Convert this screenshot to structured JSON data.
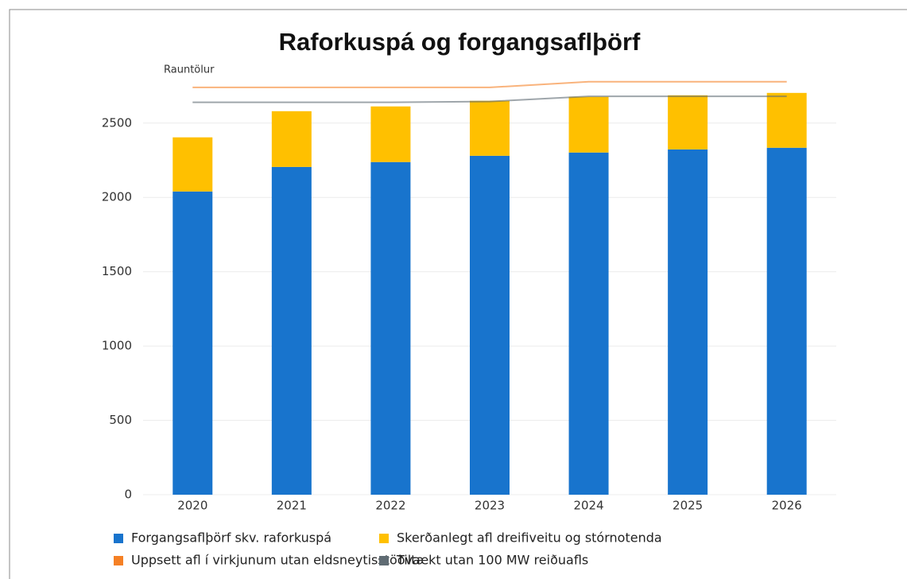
{
  "chart_data": {
    "type": "bar",
    "stacked": true,
    "title": "Raforkuspá og forgangsaflþörf",
    "annotation": "Rauntölur",
    "categories": [
      "2020",
      "2021",
      "2022",
      "2023",
      "2024",
      "2025",
      "2026"
    ],
    "series": [
      {
        "name": "Forgangsaflþörf skv. raforkuspá",
        "color": "#1874cd",
        "type": "bar",
        "values": [
          2040,
          2205,
          2238,
          2280,
          2302,
          2323,
          2334
        ]
      },
      {
        "name": "Skerðanlegt afl dreifiveitu og stórnotenda",
        "color": "#ffc000",
        "type": "bar",
        "values": [
          364,
          375,
          374,
          370,
          375,
          364,
          369
        ]
      },
      {
        "name": "Uppsett afl í virkjunum utan eldsneytisstöðva",
        "color": "#f58025",
        "type": "line",
        "values": [
          2740,
          2740,
          2740,
          2740,
          2778,
          2778,
          2778
        ]
      },
      {
        "name": "Tiltækt utan 100 MW reiðuafls",
        "color": "#5f6b73",
        "type": "line",
        "values": [
          2640,
          2640,
          2640,
          2645,
          2680,
          2680,
          2680
        ]
      }
    ],
    "ylim": [
      0,
      2900
    ],
    "yticks": [
      0,
      500,
      1000,
      1500,
      2000,
      2500
    ],
    "grid": true
  }
}
